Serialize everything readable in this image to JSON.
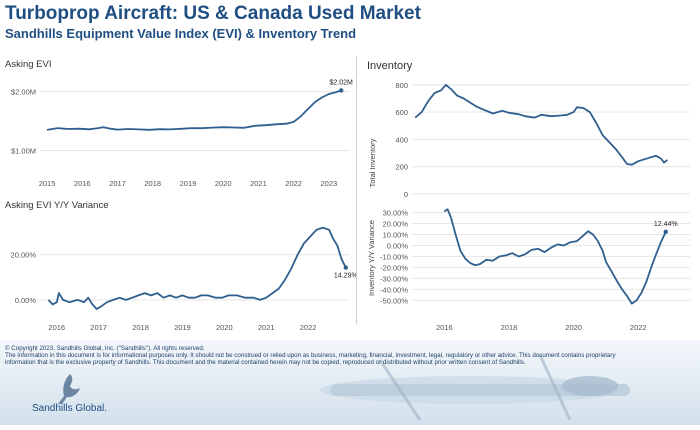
{
  "header": {
    "title": "Turboprop Aircraft:  US & Canada Used Market",
    "subtitle": "Sandhills Equipment Value Index (EVI) & Inventory Trend"
  },
  "footer": {
    "copyright": "© Copyright 2023, Sandhills Global, Inc. (\"Sandhills\"). All rights reserved.",
    "disclaimer_1": "The information in this document is for informational purposes only.  It should not be construed or relied upon as business, marketing, financial, investment, legal, regulatory or other advice. This document contains proprietary",
    "disclaimer_2": "information that is the exclusive property of Sandhills. This document and the material contained herein may not be copied, reproduced or distributed without prior written consent of Sandhills.",
    "logo_text": "Sandhills Global."
  },
  "colors": {
    "line": "#2f5f8f",
    "title": "#1f4f82",
    "axis_text": "#555555",
    "grid": "#e6e6e6",
    "footer_text": "#1f3f66"
  },
  "icons": {
    "logo": "crane-bird-logo",
    "background": "turboprop-airplane-image"
  },
  "chart_data": [
    {
      "type": "line",
      "title": "Asking EVI",
      "x_ticks": [
        "2015",
        "2016",
        "2017",
        "2018",
        "2019",
        "2020",
        "2021",
        "2022",
        "2023"
      ],
      "y_ticks": [
        {
          "v": 2000000,
          "label": "$2.00M"
        },
        {
          "v": 1000000,
          "label": "$1.00M"
        }
      ],
      "xlim": [
        2014.8,
        2023.6
      ],
      "ylim": [
        600000,
        2300000
      ],
      "grid": true,
      "end_label": "$2.02M",
      "series": [
        {
          "values": [
            [
              2015.0,
              1350000
            ],
            [
              2015.3,
              1380000
            ],
            [
              2015.6,
              1365000
            ],
            [
              2015.9,
              1370000
            ],
            [
              2016.2,
              1360000
            ],
            [
              2016.4,
              1375000
            ],
            [
              2016.6,
              1395000
            ],
            [
              2016.8,
              1370000
            ],
            [
              2017.0,
              1355000
            ],
            [
              2017.3,
              1365000
            ],
            [
              2017.6,
              1358000
            ],
            [
              2017.9,
              1352000
            ],
            [
              2018.2,
              1362000
            ],
            [
              2018.5,
              1358000
            ],
            [
              2018.8,
              1368000
            ],
            [
              2019.1,
              1380000
            ],
            [
              2019.4,
              1378000
            ],
            [
              2019.7,
              1388000
            ],
            [
              2020.0,
              1395000
            ],
            [
              2020.3,
              1390000
            ],
            [
              2020.6,
              1385000
            ],
            [
              2020.9,
              1420000
            ],
            [
              2021.2,
              1430000
            ],
            [
              2021.5,
              1445000
            ],
            [
              2021.8,
              1455000
            ],
            [
              2022.0,
              1485000
            ],
            [
              2022.2,
              1580000
            ],
            [
              2022.4,
              1700000
            ],
            [
              2022.6,
              1820000
            ],
            [
              2022.8,
              1900000
            ],
            [
              2023.0,
              1960000
            ],
            [
              2023.2,
              1990000
            ],
            [
              2023.35,
              2020000
            ]
          ]
        }
      ]
    },
    {
      "type": "line",
      "title": "Asking EVI Y/Y Variance",
      "x_ticks": [
        "2016",
        "2017",
        "2018",
        "2019",
        "2020",
        "2021",
        "2022"
      ],
      "y_ticks": [
        {
          "v": 20,
          "label": "20.00%"
        },
        {
          "v": 0,
          "label": "0.00%"
        }
      ],
      "xlim": [
        2015.6,
        2023.0
      ],
      "ylim": [
        -8,
        38
      ],
      "grid": true,
      "end_label": "14.29%",
      "series": [
        {
          "values": [
            [
              2015.8,
              0
            ],
            [
              2015.9,
              -2
            ],
            [
              2016.0,
              -1
            ],
            [
              2016.05,
              3
            ],
            [
              2016.15,
              0
            ],
            [
              2016.3,
              -1
            ],
            [
              2016.5,
              0
            ],
            [
              2016.65,
              -1
            ],
            [
              2016.75,
              1
            ],
            [
              2016.85,
              -2
            ],
            [
              2016.95,
              -4
            ],
            [
              2017.05,
              -3
            ],
            [
              2017.2,
              -1
            ],
            [
              2017.35,
              0
            ],
            [
              2017.5,
              1
            ],
            [
              2017.65,
              0
            ],
            [
              2017.8,
              1
            ],
            [
              2017.95,
              2
            ],
            [
              2018.1,
              3
            ],
            [
              2018.25,
              2
            ],
            [
              2018.4,
              3
            ],
            [
              2018.55,
              1
            ],
            [
              2018.7,
              2
            ],
            [
              2018.85,
              1
            ],
            [
              2019.0,
              2
            ],
            [
              2019.15,
              1
            ],
            [
              2019.3,
              1
            ],
            [
              2019.45,
              2
            ],
            [
              2019.6,
              2
            ],
            [
              2019.8,
              1
            ],
            [
              2019.95,
              1
            ],
            [
              2020.1,
              2
            ],
            [
              2020.3,
              2
            ],
            [
              2020.5,
              1
            ],
            [
              2020.7,
              1
            ],
            [
              2020.85,
              0
            ],
            [
              2021.0,
              1
            ],
            [
              2021.15,
              3
            ],
            [
              2021.3,
              5
            ],
            [
              2021.45,
              9
            ],
            [
              2021.6,
              14
            ],
            [
              2021.75,
              20
            ],
            [
              2021.9,
              25
            ],
            [
              2022.05,
              28
            ],
            [
              2022.2,
              31
            ],
            [
              2022.35,
              32
            ],
            [
              2022.5,
              31
            ],
            [
              2022.6,
              27
            ],
            [
              2022.7,
              24
            ],
            [
              2022.8,
              18
            ],
            [
              2022.9,
              14.29
            ]
          ]
        }
      ]
    },
    {
      "type": "line",
      "title": "Inventory",
      "ylabel": "Total Inventory",
      "x_ticks": [],
      "y_ticks": [
        {
          "v": 800,
          "label": "800"
        },
        {
          "v": 600,
          "label": "600"
        },
        {
          "v": 400,
          "label": "400"
        },
        {
          "v": 200,
          "label": "200"
        },
        {
          "v": 0,
          "label": "0"
        }
      ],
      "xlim": [
        2015.0,
        2023.6
      ],
      "ylim": [
        0,
        850
      ],
      "grid": true,
      "series": [
        {
          "values": [
            [
              2015.1,
              560
            ],
            [
              2015.3,
              600
            ],
            [
              2015.5,
              680
            ],
            [
              2015.7,
              740
            ],
            [
              2015.9,
              760
            ],
            [
              2016.05,
              800
            ],
            [
              2016.2,
              770
            ],
            [
              2016.4,
              720
            ],
            [
              2016.6,
              700
            ],
            [
              2016.8,
              670
            ],
            [
              2017.0,
              640
            ],
            [
              2017.2,
              620
            ],
            [
              2017.5,
              590
            ],
            [
              2017.8,
              610
            ],
            [
              2018.0,
              595
            ],
            [
              2018.3,
              585
            ],
            [
              2018.5,
              570
            ],
            [
              2018.8,
              560
            ],
            [
              2019.0,
              580
            ],
            [
              2019.3,
              570
            ],
            [
              2019.6,
              575
            ],
            [
              2019.8,
              580
            ],
            [
              2020.0,
              600
            ],
            [
              2020.1,
              635
            ],
            [
              2020.3,
              630
            ],
            [
              2020.5,
              600
            ],
            [
              2020.7,
              520
            ],
            [
              2020.9,
              430
            ],
            [
              2021.1,
              380
            ],
            [
              2021.3,
              330
            ],
            [
              2021.5,
              270
            ],
            [
              2021.65,
              220
            ],
            [
              2021.8,
              215
            ],
            [
              2022.0,
              240
            ],
            [
              2022.2,
              255
            ],
            [
              2022.4,
              270
            ],
            [
              2022.55,
              280
            ],
            [
              2022.7,
              260
            ],
            [
              2022.8,
              230
            ],
            [
              2022.9,
              250
            ]
          ]
        }
      ]
    },
    {
      "type": "line",
      "ylabel": "Inventory  Y/Y Variance",
      "x_ticks": [
        "2016",
        "2018",
        "2020",
        "2022"
      ],
      "y_ticks": [
        {
          "v": 30,
          "label": "30.00%"
        },
        {
          "v": 20,
          "label": "20.00%"
        },
        {
          "v": 10,
          "label": "10.00%"
        },
        {
          "v": 0,
          "label": "0.00%"
        },
        {
          "v": -10,
          "label": "-10.00%"
        },
        {
          "v": -20,
          "label": "-20.00%"
        },
        {
          "v": -30,
          "label": "-30.00%"
        },
        {
          "v": -40,
          "label": "-40.00%"
        },
        {
          "v": -50,
          "label": "-50.00%"
        }
      ],
      "xlim": [
        2015.0,
        2023.6
      ],
      "ylim": [
        -57,
        36
      ],
      "grid": true,
      "end_label": "12.44%",
      "series": [
        {
          "values": [
            [
              2016.0,
              31
            ],
            [
              2016.1,
              33
            ],
            [
              2016.2,
              26
            ],
            [
              2016.35,
              10
            ],
            [
              2016.5,
              -5
            ],
            [
              2016.65,
              -12
            ],
            [
              2016.8,
              -16
            ],
            [
              2016.95,
              -18
            ],
            [
              2017.1,
              -17
            ],
            [
              2017.3,
              -13
            ],
            [
              2017.5,
              -14
            ],
            [
              2017.7,
              -10
            ],
            [
              2017.9,
              -9
            ],
            [
              2018.1,
              -7
            ],
            [
              2018.3,
              -10
            ],
            [
              2018.5,
              -8
            ],
            [
              2018.7,
              -4
            ],
            [
              2018.9,
              -3
            ],
            [
              2019.1,
              -6
            ],
            [
              2019.3,
              -2
            ],
            [
              2019.5,
              1
            ],
            [
              2019.7,
              0
            ],
            [
              2019.9,
              3
            ],
            [
              2020.1,
              4
            ],
            [
              2020.3,
              9
            ],
            [
              2020.45,
              13
            ],
            [
              2020.6,
              10
            ],
            [
              2020.75,
              4
            ],
            [
              2020.9,
              -5
            ],
            [
              2021.0,
              -15
            ],
            [
              2021.2,
              -25
            ],
            [
              2021.35,
              -33
            ],
            [
              2021.5,
              -40
            ],
            [
              2021.65,
              -46
            ],
            [
              2021.8,
              -53
            ],
            [
              2021.95,
              -50
            ],
            [
              2022.1,
              -43
            ],
            [
              2022.25,
              -33
            ],
            [
              2022.4,
              -20
            ],
            [
              2022.55,
              -8
            ],
            [
              2022.7,
              3
            ],
            [
              2022.85,
              12.44
            ]
          ]
        }
      ]
    }
  ]
}
